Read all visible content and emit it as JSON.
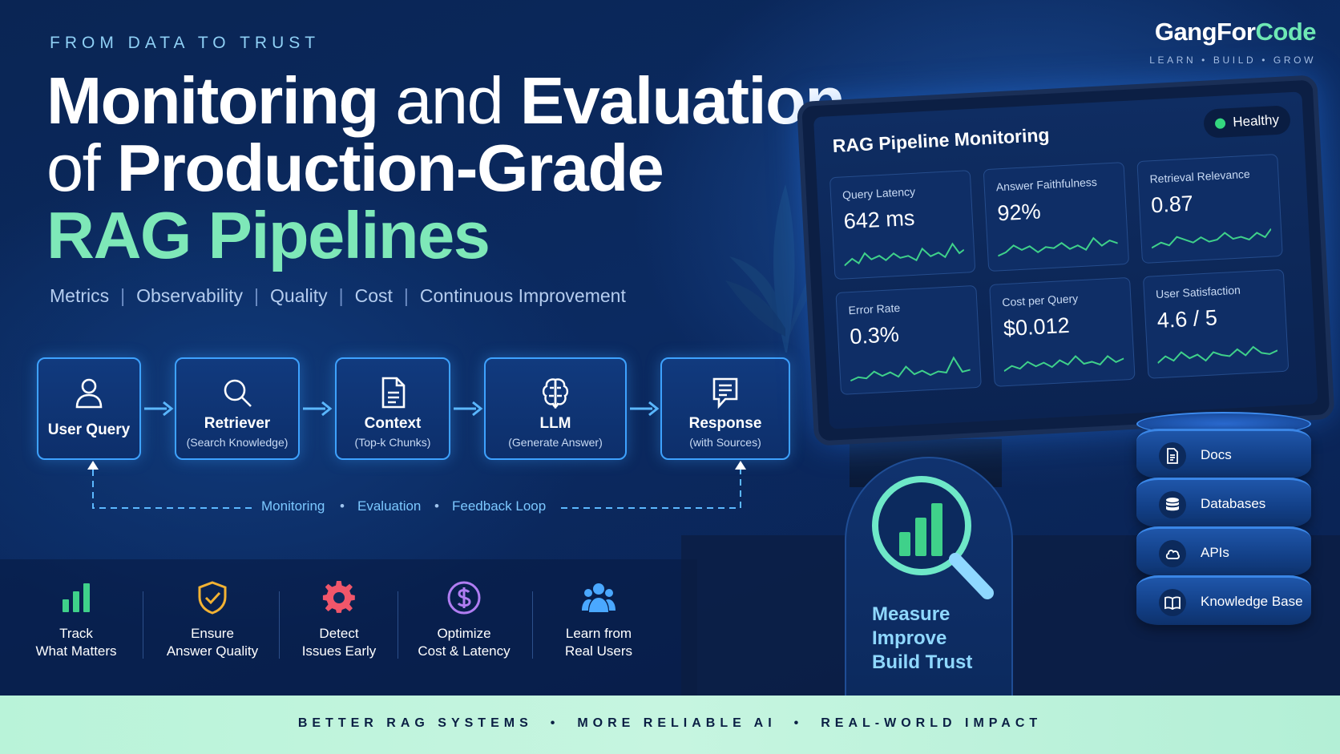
{
  "header": {
    "eyebrow": "FROM DATA TO TRUST",
    "title_line1_part1": "Monitoring",
    "title_line1_part2": " and ",
    "title_line1_part3": "Evaluation",
    "title_line2_part1": "of ",
    "title_line2_part2": "Production-Grade",
    "title_line3": "RAG Pipelines",
    "tags": [
      "Metrics",
      "Observability",
      "Quality",
      "Cost",
      "Continuous Improvement"
    ],
    "tag_separator": "|"
  },
  "brand": {
    "name_part1": "GangFor",
    "name_part2": "Code",
    "tagline": "LEARN • BUILD • GROW"
  },
  "pipeline": {
    "steps": [
      {
        "title": "User Query",
        "subtitle": "",
        "icon": "user-icon"
      },
      {
        "title": "Retriever",
        "subtitle": "(Search Knowledge)",
        "icon": "search-icon"
      },
      {
        "title": "Context",
        "subtitle": "(Top-k Chunks)",
        "icon": "document-icon"
      },
      {
        "title": "LLM",
        "subtitle": "(Generate Answer)",
        "icon": "brain-icon"
      },
      {
        "title": "Response",
        "subtitle": "(with Sources)",
        "icon": "message-icon"
      }
    ],
    "loop_labels": [
      "Monitoring",
      "Evaluation",
      "Feedback Loop"
    ],
    "loop_separator": "•"
  },
  "benefits": [
    {
      "line1": "Track",
      "line2": "What Matters",
      "icon": "bar-chart-icon",
      "color": "#3fd18a"
    },
    {
      "line1": "Ensure",
      "line2": "Answer Quality",
      "icon": "shield-check-icon",
      "color": "#f2b233"
    },
    {
      "line1": "Detect",
      "line2": "Issues Early",
      "icon": "gear-icon",
      "color": "#f0566a"
    },
    {
      "line1": "Optimize",
      "line2": "Cost & Latency",
      "icon": "dollar-icon",
      "color": "#b07df2"
    },
    {
      "line1": "Learn from",
      "line2": "Real Users",
      "icon": "users-icon",
      "color": "#4aa8ff"
    }
  ],
  "dashboard": {
    "title": "RAG Pipeline Monitoring",
    "status": "Healthy",
    "status_color": "#34d77f",
    "metrics": [
      {
        "label": "Query Latency",
        "value": "642 ms"
      },
      {
        "label": "Answer Faithfulness",
        "value": "92%"
      },
      {
        "label": "Retrieval Relevance",
        "value": "0.87"
      },
      {
        "label": "Error Rate",
        "value": "0.3%"
      },
      {
        "label": "Cost per Query",
        "value": "$0.012"
      },
      {
        "label": "User Satisfaction",
        "value": "4.6 / 5"
      }
    ]
  },
  "measure": {
    "lines": [
      "Measure",
      "Improve",
      "Build Trust"
    ],
    "icon": "magnifier-chart-icon"
  },
  "sources": [
    {
      "label": "Docs",
      "icon": "document-icon"
    },
    {
      "label": "Databases",
      "icon": "database-icon"
    },
    {
      "label": "APIs",
      "icon": "cloud-icon"
    },
    {
      "label": "Knowledge Base",
      "icon": "book-icon"
    }
  ],
  "footer": {
    "items": [
      "BETTER RAG SYSTEMS",
      "MORE RELIABLE AI",
      "REAL-WORLD IMPACT"
    ],
    "separator": "•"
  },
  "colors": {
    "accent_green": "#7ee8b8",
    "accent_blue": "#3ea2ff",
    "background": "#0b2a61"
  }
}
